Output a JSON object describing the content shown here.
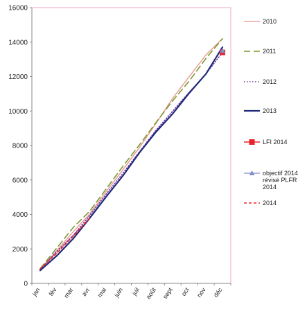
{
  "chart_data": {
    "type": "line",
    "categories": [
      "jan",
      "fév",
      "mar",
      "avr",
      "mai",
      "juin",
      "juil",
      "août",
      "sept",
      "oct",
      "nov",
      "déc"
    ],
    "ylim": [
      0,
      16000
    ],
    "yticks": [
      0,
      2000,
      4000,
      6000,
      8000,
      10000,
      12000,
      14000,
      16000
    ],
    "grid": false,
    "legend_position": "right",
    "series": [
      {
        "name": "2010",
        "color": "#e8928a",
        "dash": "solid",
        "width": 1.3,
        "marker": "none",
        "values": [
          800,
          1900,
          3000,
          4050,
          5350,
          6600,
          7900,
          9300,
          10750,
          12000,
          13250,
          14200
        ]
      },
      {
        "name": "2011",
        "color": "#7a9a30",
        "dash": "long-dash",
        "width": 1.6,
        "marker": "none",
        "values": [
          850,
          2050,
          3250,
          4200,
          5500,
          6800,
          8050,
          9350,
          10600,
          11750,
          13050,
          14200
        ]
      },
      {
        "name": "2012",
        "color": "#7030a0",
        "dash": "dotted",
        "width": 1.5,
        "marker": "none",
        "values": [
          800,
          1850,
          2800,
          3950,
          5200,
          6400,
          7650,
          8900,
          10000,
          11100,
          12150,
          13400
        ]
      },
      {
        "name": "2013",
        "color": "#1f2a78",
        "dash": "solid",
        "width": 2.2,
        "marker": "none",
        "values": [
          750,
          1600,
          2600,
          3800,
          5050,
          6250,
          7600,
          8800,
          9850,
          11050,
          12150,
          13700
        ]
      },
      {
        "name": "LFI 2014",
        "color": "#e8222a",
        "dash": "solid",
        "width": 1.6,
        "marker": "square",
        "values": [
          null,
          null,
          null,
          null,
          null,
          null,
          null,
          null,
          null,
          null,
          null,
          13400
        ]
      },
      {
        "name": "objectif 2014 révisé PLFR 2014",
        "color": "#8090c8",
        "dash": "solid",
        "width": 1.3,
        "marker": "triangle",
        "values": [
          null,
          null,
          null,
          null,
          null,
          null,
          null,
          null,
          null,
          null,
          null,
          13500
        ]
      },
      {
        "name": "2014",
        "color": "#e8222a",
        "dash": "dashed",
        "width": 1.6,
        "marker": "none",
        "values": [
          850,
          1750,
          2750,
          3800,
          null,
          null,
          null,
          null,
          null,
          null,
          null,
          null
        ]
      }
    ]
  }
}
